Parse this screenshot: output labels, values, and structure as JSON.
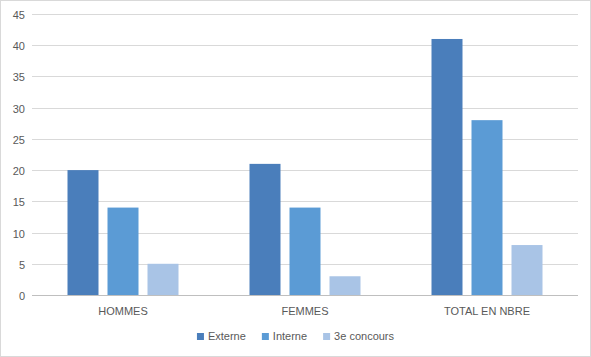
{
  "chart_data": {
    "type": "bar",
    "categories": [
      "HOMMES",
      "FEMMES",
      "TOTAL EN NBRE"
    ],
    "series": [
      {
        "name": "Externe",
        "color": "#4a7ebb",
        "values": [
          20,
          21,
          41
        ]
      },
      {
        "name": "Interne",
        "color": "#5b9bd5",
        "values": [
          14,
          14,
          28
        ]
      },
      {
        "name": "3e concours",
        "color": "#a9c4e6",
        "values": [
          5,
          3,
          8
        ]
      }
    ],
    "ylim": [
      0,
      45
    ],
    "yticks": [
      0,
      5,
      10,
      15,
      20,
      25,
      30,
      35,
      40,
      45
    ],
    "grid": true,
    "legend": "bottom"
  }
}
